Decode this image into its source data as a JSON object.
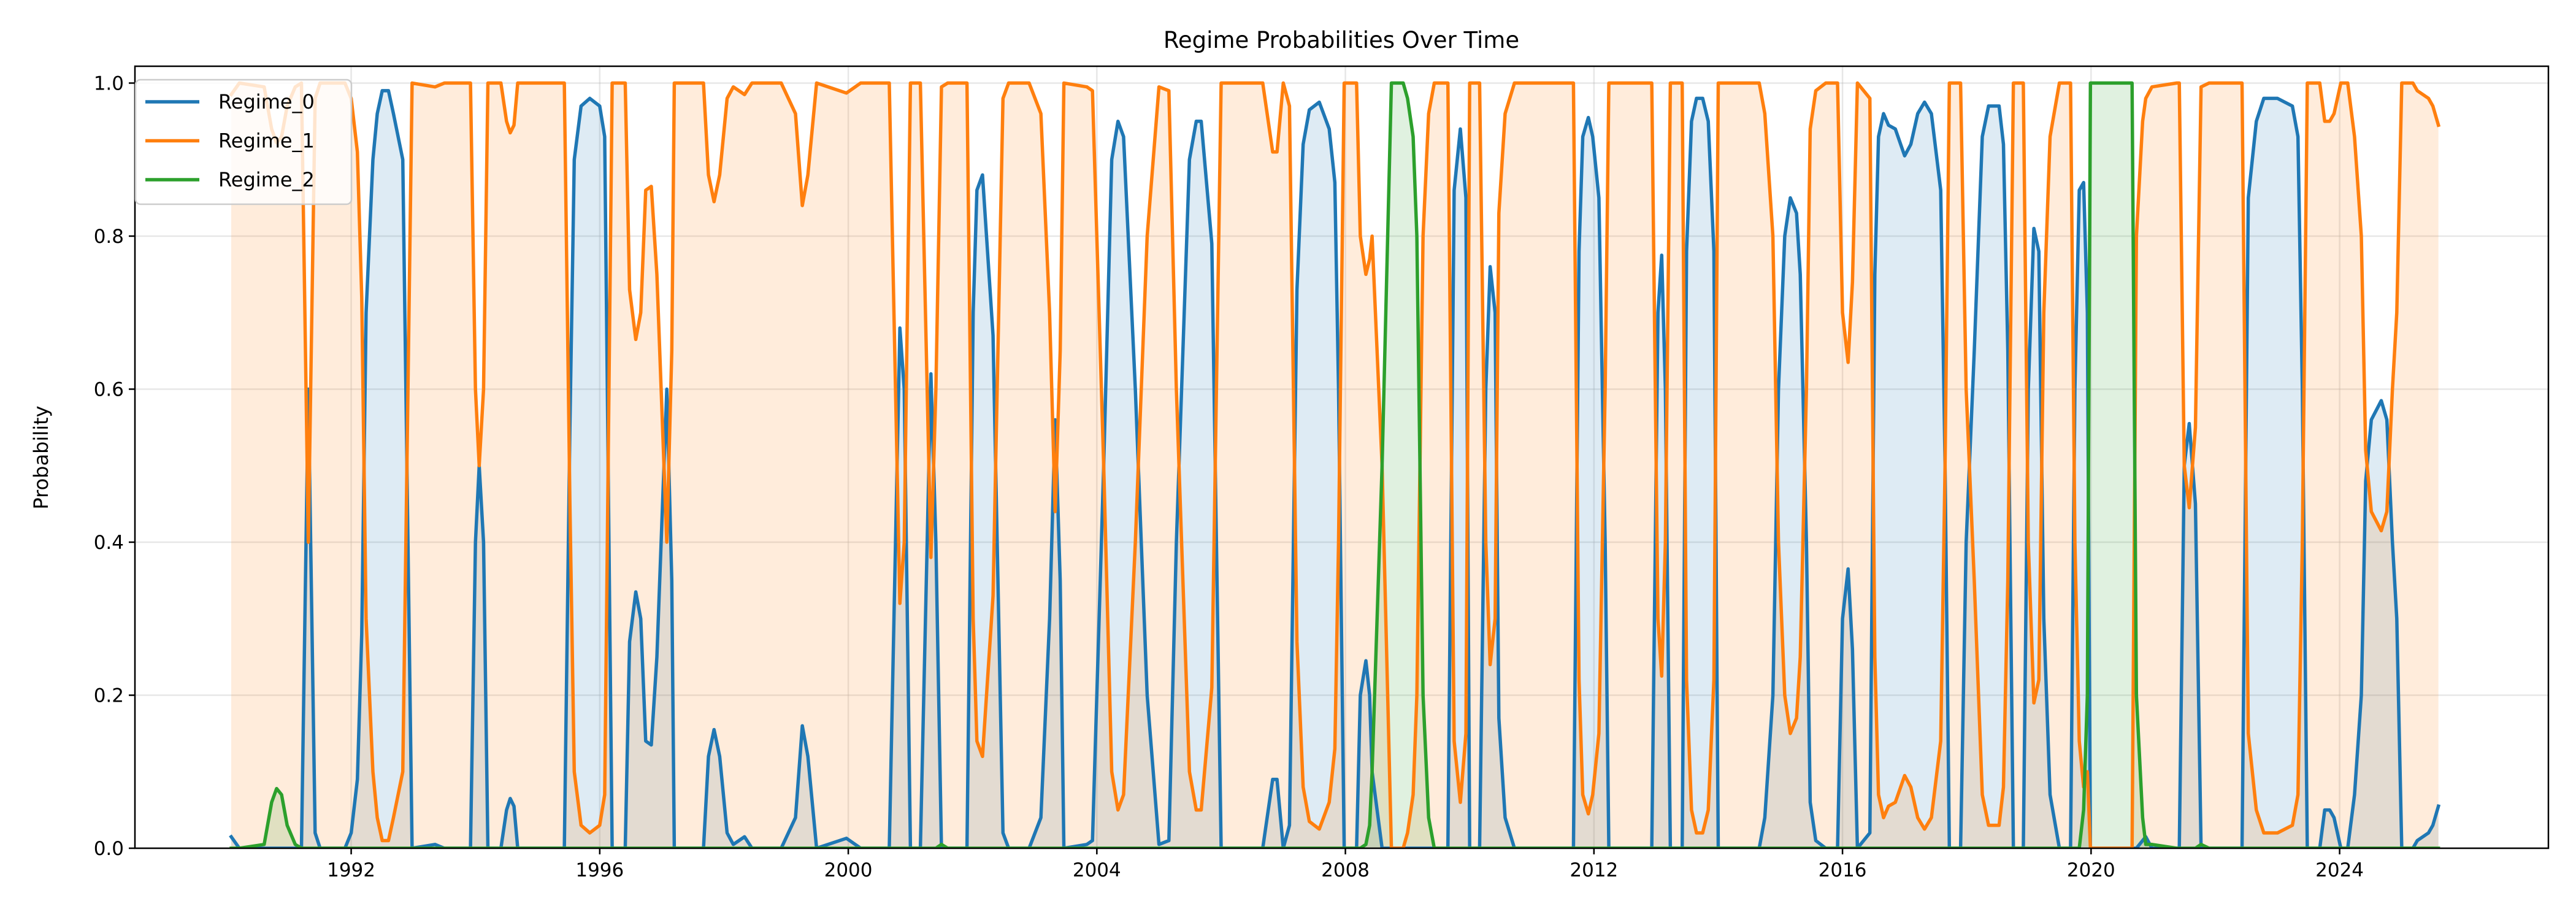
{
  "chart_data": {
    "type": "line",
    "title": "Regime Probabilities Over Time",
    "xlabel": "",
    "ylabel": "Probability",
    "xlim": [
      1988.52,
      2027.36
    ],
    "ylim": [
      0,
      1.022
    ],
    "xticks": [
      1992,
      1996,
      2000,
      2004,
      2008,
      2012,
      2016,
      2020,
      2024
    ],
    "xtick_labels": [
      "1992",
      "1996",
      "2000",
      "2004",
      "2008",
      "2012",
      "2016",
      "2020",
      "2024"
    ],
    "yticks": [
      0.0,
      0.2,
      0.4,
      0.6,
      0.8,
      1.0
    ],
    "ytick_labels": [
      "0.0",
      "0.2",
      "0.4",
      "0.6",
      "0.8",
      "1.0"
    ],
    "grid": true,
    "legend_position": "top-left",
    "fill_under_lines": true,
    "series": [
      {
        "name": "Regime_0",
        "color": "#1f77b4"
      },
      {
        "name": "Regime_1",
        "color": "#ff7f0e"
      },
      {
        "name": "Regime_2",
        "color": "#2ca02c"
      }
    ],
    "columns": [
      "date",
      "Regime_0",
      "Regime_1",
      "Regime_2"
    ],
    "rows": [
      [
        1990.07,
        0.015,
        0.985,
        0
      ],
      [
        1990.2,
        0,
        1,
        0
      ],
      [
        1990.6,
        0,
        0.995,
        0.005
      ],
      [
        1990.72,
        0,
        0.94,
        0.06
      ],
      [
        1990.8,
        0,
        0.922,
        0.078
      ],
      [
        1990.88,
        0,
        0.93,
        0.07
      ],
      [
        1990.97,
        0,
        0.97,
        0.03
      ],
      [
        1991.1,
        0,
        0.995,
        0.005
      ],
      [
        1991.2,
        0,
        1,
        0
      ],
      [
        1991.31,
        0.6,
        0.4,
        0
      ],
      [
        1991.42,
        0.02,
        0.98,
        0
      ],
      [
        1991.5,
        0,
        1,
        0
      ],
      [
        1991.9,
        0,
        1,
        0
      ],
      [
        1992.0,
        0.02,
        0.98,
        0
      ],
      [
        1992.1,
        0.09,
        0.91,
        0
      ],
      [
        1992.17,
        0.28,
        0.72,
        0
      ],
      [
        1992.24,
        0.7,
        0.3,
        0
      ],
      [
        1992.35,
        0.9,
        0.1,
        0
      ],
      [
        1992.42,
        0.96,
        0.04,
        0
      ],
      [
        1992.5,
        0.99,
        0.01,
        0
      ],
      [
        1992.6,
        0.99,
        0.01,
        0
      ],
      [
        1992.68,
        0.96,
        0.04,
        0
      ],
      [
        1992.83,
        0.9,
        0.1,
        0
      ],
      [
        1992.98,
        0,
        1,
        0
      ],
      [
        1993.35,
        0.005,
        0.995,
        0
      ],
      [
        1993.5,
        0,
        1,
        0
      ],
      [
        1993.92,
        0,
        1,
        0
      ],
      [
        1994.0,
        0.4,
        0.6,
        0
      ],
      [
        1994.06,
        0.5,
        0.5,
        0
      ],
      [
        1994.13,
        0.4,
        0.6,
        0
      ],
      [
        1994.2,
        0,
        1,
        0
      ],
      [
        1994.41,
        0,
        1,
        0
      ],
      [
        1994.5,
        0.05,
        0.95,
        0
      ],
      [
        1994.56,
        0.065,
        0.935,
        0
      ],
      [
        1994.62,
        0.055,
        0.945,
        0
      ],
      [
        1994.68,
        0,
        1,
        0
      ],
      [
        1995.43,
        0,
        1,
        0
      ],
      [
        1995.52,
        0.55,
        0.45,
        0
      ],
      [
        1995.59,
        0.9,
        0.1,
        0
      ],
      [
        1995.7,
        0.97,
        0.03,
        0
      ],
      [
        1995.84,
        0.98,
        0.02,
        0
      ],
      [
        1996.0,
        0.97,
        0.03,
        0
      ],
      [
        1996.08,
        0.93,
        0.07,
        0
      ],
      [
        1996.2,
        0,
        1,
        0
      ],
      [
        1996.41,
        0,
        1,
        0
      ],
      [
        1996.48,
        0.27,
        0.73,
        0
      ],
      [
        1996.58,
        0.335,
        0.665,
        0
      ],
      [
        1996.66,
        0.3,
        0.7,
        0
      ],
      [
        1996.74,
        0.14,
        0.86,
        0
      ],
      [
        1996.83,
        0.135,
        0.865,
        0
      ],
      [
        1996.92,
        0.25,
        0.75,
        0
      ],
      [
        1997.08,
        0.6,
        0.4,
        0
      ],
      [
        1997.16,
        0.35,
        0.65,
        0
      ],
      [
        1997.2,
        0,
        1,
        0
      ],
      [
        1997.67,
        0,
        1,
        0
      ],
      [
        1997.75,
        0.12,
        0.88,
        0
      ],
      [
        1997.84,
        0.155,
        0.845,
        0
      ],
      [
        1997.93,
        0.12,
        0.88,
        0
      ],
      [
        1998.05,
        0.02,
        0.98,
        0
      ],
      [
        1998.15,
        0.005,
        0.995,
        0
      ],
      [
        1998.33,
        0.015,
        0.985,
        0
      ],
      [
        1998.45,
        0,
        1,
        0
      ],
      [
        1998.92,
        0,
        1,
        0
      ],
      [
        1999.15,
        0.04,
        0.96,
        0
      ],
      [
        1999.26,
        0.16,
        0.84,
        0
      ],
      [
        1999.35,
        0.12,
        0.88,
        0
      ],
      [
        1999.49,
        0,
        1,
        0
      ],
      [
        1999.97,
        0.013,
        0.987,
        0
      ],
      [
        2000.2,
        0,
        1,
        0
      ],
      [
        2000.66,
        0,
        1,
        0
      ],
      [
        2000.83,
        0.68,
        0.32,
        0
      ],
      [
        2000.9,
        0.6,
        0.4,
        0
      ],
      [
        2001.0,
        0,
        1,
        0
      ],
      [
        2001.16,
        0,
        1,
        0
      ],
      [
        2001.33,
        0.62,
        0.38,
        0
      ],
      [
        2001.41,
        0.4,
        0.6,
        0
      ],
      [
        2001.5,
        0,
        0.995,
        0.005
      ],
      [
        2001.6,
        0,
        1,
        0
      ],
      [
        2001.91,
        0,
        1,
        0
      ],
      [
        2002.01,
        0.7,
        0.3,
        0
      ],
      [
        2002.07,
        0.86,
        0.14,
        0
      ],
      [
        2002.16,
        0.88,
        0.12,
        0
      ],
      [
        2002.33,
        0.67,
        0.33,
        0
      ],
      [
        2002.49,
        0.02,
        0.98,
        0
      ],
      [
        2002.58,
        0,
        1,
        0
      ],
      [
        2002.91,
        0,
        1,
        0
      ],
      [
        2003.1,
        0.04,
        0.96,
        0
      ],
      [
        2003.24,
        0.3,
        0.7,
        0
      ],
      [
        2003.33,
        0.56,
        0.44,
        0
      ],
      [
        2003.41,
        0.35,
        0.65,
        0
      ],
      [
        2003.47,
        0,
        1,
        0
      ],
      [
        2003.84,
        0.005,
        0.995,
        0
      ],
      [
        2003.93,
        0.01,
        0.99,
        0
      ],
      [
        2004.11,
        0.5,
        0.5,
        0
      ],
      [
        2004.24,
        0.9,
        0.1,
        0
      ],
      [
        2004.34,
        0.95,
        0.05,
        0
      ],
      [
        2004.43,
        0.93,
        0.07,
        0
      ],
      [
        2004.62,
        0.6,
        0.4,
        0
      ],
      [
        2004.81,
        0.2,
        0.8,
        0
      ],
      [
        2005.0,
        0.005,
        0.995,
        0
      ],
      [
        2005.16,
        0.01,
        0.99,
        0
      ],
      [
        2005.28,
        0.4,
        0.6,
        0
      ],
      [
        2005.49,
        0.9,
        0.1,
        0
      ],
      [
        2005.6,
        0.95,
        0.05,
        0
      ],
      [
        2005.68,
        0.95,
        0.05,
        0
      ],
      [
        2005.85,
        0.79,
        0.21,
        0
      ],
      [
        2006.0,
        0,
        1,
        0
      ],
      [
        2006.67,
        0,
        1,
        0
      ],
      [
        2006.83,
        0.09,
        0.91,
        0
      ],
      [
        2006.9,
        0.09,
        0.91,
        0
      ],
      [
        2007.0,
        0,
        1,
        0
      ],
      [
        2007.1,
        0.03,
        0.97,
        0
      ],
      [
        2007.22,
        0.73,
        0.27,
        0
      ],
      [
        2007.32,
        0.92,
        0.08,
        0
      ],
      [
        2007.42,
        0.965,
        0.035,
        0
      ],
      [
        2007.58,
        0.975,
        0.025,
        0
      ],
      [
        2007.74,
        0.94,
        0.06,
        0
      ],
      [
        2007.83,
        0.87,
        0.13,
        0
      ],
      [
        2007.89,
        0.6,
        0.4,
        0
      ],
      [
        2007.98,
        0,
        1,
        0
      ],
      [
        2008.18,
        0,
        1,
        0
      ],
      [
        2008.24,
        0.2,
        0.8,
        0
      ],
      [
        2008.33,
        0.245,
        0.75,
        0.005
      ],
      [
        2008.39,
        0.2,
        0.77,
        0.03
      ],
      [
        2008.43,
        0.1,
        0.8,
        0.1
      ],
      [
        2008.59,
        0,
        0.5,
        0.5
      ],
      [
        2008.74,
        0,
        0,
        1
      ],
      [
        2008.93,
        0,
        0,
        1
      ],
      [
        2009.0,
        0,
        0.02,
        0.98
      ],
      [
        2009.09,
        0,
        0.07,
        0.93
      ],
      [
        2009.15,
        0,
        0.2,
        0.8
      ],
      [
        2009.25,
        0,
        0.8,
        0.2
      ],
      [
        2009.34,
        0,
        0.96,
        0.04
      ],
      [
        2009.43,
        0,
        1,
        0
      ],
      [
        2009.65,
        0,
        1,
        0
      ],
      [
        2009.75,
        0.86,
        0.14,
        0
      ],
      [
        2009.85,
        0.94,
        0.06,
        0
      ],
      [
        2009.94,
        0.85,
        0.15,
        0
      ],
      [
        2010.0,
        0,
        1,
        0
      ],
      [
        2010.16,
        0,
        1,
        0
      ],
      [
        2010.26,
        0.6,
        0.4,
        0
      ],
      [
        2010.33,
        0.76,
        0.24,
        0
      ],
      [
        2010.41,
        0.7,
        0.3,
        0
      ],
      [
        2010.47,
        0.17,
        0.83,
        0
      ],
      [
        2010.57,
        0.04,
        0.96,
        0
      ],
      [
        2010.72,
        0,
        1,
        0
      ],
      [
        2011.67,
        0,
        1,
        0
      ],
      [
        2011.76,
        0.78,
        0.22,
        0
      ],
      [
        2011.82,
        0.93,
        0.07,
        0
      ],
      [
        2011.91,
        0.955,
        0.045,
        0
      ],
      [
        2011.98,
        0.93,
        0.07,
        0
      ],
      [
        2012.08,
        0.85,
        0.15,
        0
      ],
      [
        2012.18,
        0.4,
        0.6,
        0
      ],
      [
        2012.24,
        0,
        1,
        0
      ],
      [
        2012.93,
        0,
        1,
        0
      ],
      [
        2013.03,
        0.7,
        0.3,
        0
      ],
      [
        2013.09,
        0.775,
        0.225,
        0
      ],
      [
        2013.15,
        0.6,
        0.4,
        0
      ],
      [
        2013.23,
        0,
        1,
        0
      ],
      [
        2013.42,
        0,
        1,
        0
      ],
      [
        2013.49,
        0.78,
        0.22,
        0
      ],
      [
        2013.57,
        0.95,
        0.05,
        0
      ],
      [
        2013.65,
        0.98,
        0.02,
        0
      ],
      [
        2013.75,
        0.98,
        0.02,
        0
      ],
      [
        2013.84,
        0.95,
        0.05,
        0
      ],
      [
        2013.93,
        0.78,
        0.22,
        0
      ],
      [
        2014.0,
        0,
        1,
        0
      ],
      [
        2014.66,
        0,
        1,
        0
      ],
      [
        2014.75,
        0.04,
        0.96,
        0
      ],
      [
        2014.88,
        0.2,
        0.8,
        0
      ],
      [
        2014.97,
        0.6,
        0.4,
        0
      ],
      [
        2015.07,
        0.8,
        0.2,
        0
      ],
      [
        2015.16,
        0.85,
        0.15,
        0
      ],
      [
        2015.26,
        0.83,
        0.17,
        0
      ],
      [
        2015.32,
        0.75,
        0.25,
        0
      ],
      [
        2015.42,
        0.4,
        0.6,
        0
      ],
      [
        2015.48,
        0.06,
        0.94,
        0
      ],
      [
        2015.57,
        0.01,
        0.99,
        0
      ],
      [
        2015.73,
        0,
        1,
        0
      ],
      [
        2015.92,
        0,
        1,
        0
      ],
      [
        2016.0,
        0.3,
        0.7,
        0
      ],
      [
        2016.09,
        0.365,
        0.635,
        0
      ],
      [
        2016.16,
        0.26,
        0.74,
        0
      ],
      [
        2016.24,
        0,
        1,
        0
      ],
      [
        2016.44,
        0.02,
        0.98,
        0
      ],
      [
        2016.52,
        0.75,
        0.25,
        0
      ],
      [
        2016.58,
        0.93,
        0.07,
        0
      ],
      [
        2016.66,
        0.96,
        0.04,
        0
      ],
      [
        2016.74,
        0.945,
        0.055,
        0
      ],
      [
        2016.85,
        0.94,
        0.06,
        0
      ],
      [
        2017.0,
        0.905,
        0.095,
        0
      ],
      [
        2017.1,
        0.92,
        0.08,
        0
      ],
      [
        2017.21,
        0.96,
        0.04,
        0
      ],
      [
        2017.32,
        0.975,
        0.025,
        0
      ],
      [
        2017.43,
        0.96,
        0.04,
        0
      ],
      [
        2017.58,
        0.86,
        0.14,
        0
      ],
      [
        2017.65,
        0.5,
        0.5,
        0
      ],
      [
        2017.72,
        0,
        1,
        0
      ],
      [
        2017.9,
        0,
        1,
        0
      ],
      [
        2017.99,
        0.4,
        0.6,
        0
      ],
      [
        2018.12,
        0.65,
        0.35,
        0
      ],
      [
        2018.25,
        0.93,
        0.07,
        0
      ],
      [
        2018.35,
        0.97,
        0.03,
        0
      ],
      [
        2018.52,
        0.97,
        0.03,
        0
      ],
      [
        2018.59,
        0.92,
        0.08,
        0
      ],
      [
        2018.66,
        0.65,
        0.35,
        0
      ],
      [
        2018.75,
        0,
        1,
        0
      ],
      [
        2018.91,
        0,
        1,
        0
      ],
      [
        2018.99,
        0.6,
        0.4,
        0
      ],
      [
        2019.08,
        0.81,
        0.19,
        0
      ],
      [
        2019.16,
        0.78,
        0.22,
        0
      ],
      [
        2019.24,
        0.3,
        0.7,
        0
      ],
      [
        2019.34,
        0.07,
        0.93,
        0
      ],
      [
        2019.49,
        0,
        1,
        0
      ],
      [
        2019.67,
        0,
        1,
        0
      ],
      [
        2019.74,
        0.6,
        0.4,
        0
      ],
      [
        2019.81,
        0.86,
        0.14,
        0
      ],
      [
        2019.88,
        0.87,
        0.08,
        0.05
      ],
      [
        2019.94,
        0.7,
        0.1,
        0.2
      ],
      [
        2019.99,
        0,
        0,
        1
      ],
      [
        2020.66,
        0,
        0,
        1
      ],
      [
        2020.73,
        0,
        0.8,
        0.2
      ],
      [
        2020.83,
        0.01,
        0.95,
        0.04
      ],
      [
        2020.88,
        0.015,
        0.98,
        0.005
      ],
      [
        2020.98,
        0,
        0.995,
        0.005
      ],
      [
        2021.38,
        0,
        1,
        0
      ],
      [
        2021.42,
        0,
        1,
        0
      ],
      [
        2021.5,
        0.5,
        0.5,
        0
      ],
      [
        2021.58,
        0.555,
        0.445,
        0
      ],
      [
        2021.68,
        0.45,
        0.55,
        0
      ],
      [
        2021.77,
        0,
        0.995,
        0.005
      ],
      [
        2021.9,
        0,
        1,
        0
      ],
      [
        2022.43,
        0,
        1,
        0
      ],
      [
        2022.53,
        0.85,
        0.15,
        0
      ],
      [
        2022.66,
        0.95,
        0.05,
        0
      ],
      [
        2022.78,
        0.98,
        0.02,
        0
      ],
      [
        2023.0,
        0.98,
        0.02,
        0
      ],
      [
        2023.24,
        0.97,
        0.03,
        0
      ],
      [
        2023.33,
        0.93,
        0.07,
        0
      ],
      [
        2023.4,
        0.6,
        0.4,
        0
      ],
      [
        2023.48,
        0,
        1,
        0
      ],
      [
        2023.68,
        0,
        1,
        0
      ],
      [
        2023.76,
        0.05,
        0.95,
        0
      ],
      [
        2023.84,
        0.05,
        0.95,
        0
      ],
      [
        2023.91,
        0.04,
        0.96,
        0
      ],
      [
        2024.02,
        0,
        1,
        0
      ],
      [
        2024.13,
        0,
        1,
        0
      ],
      [
        2024.24,
        0.07,
        0.93,
        0
      ],
      [
        2024.35,
        0.2,
        0.8,
        0
      ],
      [
        2024.42,
        0.48,
        0.52,
        0
      ],
      [
        2024.51,
        0.56,
        0.44,
        0
      ],
      [
        2024.67,
        0.585,
        0.415,
        0
      ],
      [
        2024.76,
        0.56,
        0.44,
        0
      ],
      [
        2024.85,
        0.4,
        0.6,
        0
      ],
      [
        2024.92,
        0.3,
        0.7,
        0
      ],
      [
        2025.0,
        0,
        1,
        0
      ],
      [
        2025.18,
        0,
        1,
        0
      ],
      [
        2025.25,
        0.01,
        0.99,
        0
      ],
      [
        2025.43,
        0.02,
        0.98,
        0
      ],
      [
        2025.5,
        0.03,
        0.97,
        0
      ],
      [
        2025.59,
        0.055,
        0.945,
        0
      ]
    ]
  }
}
